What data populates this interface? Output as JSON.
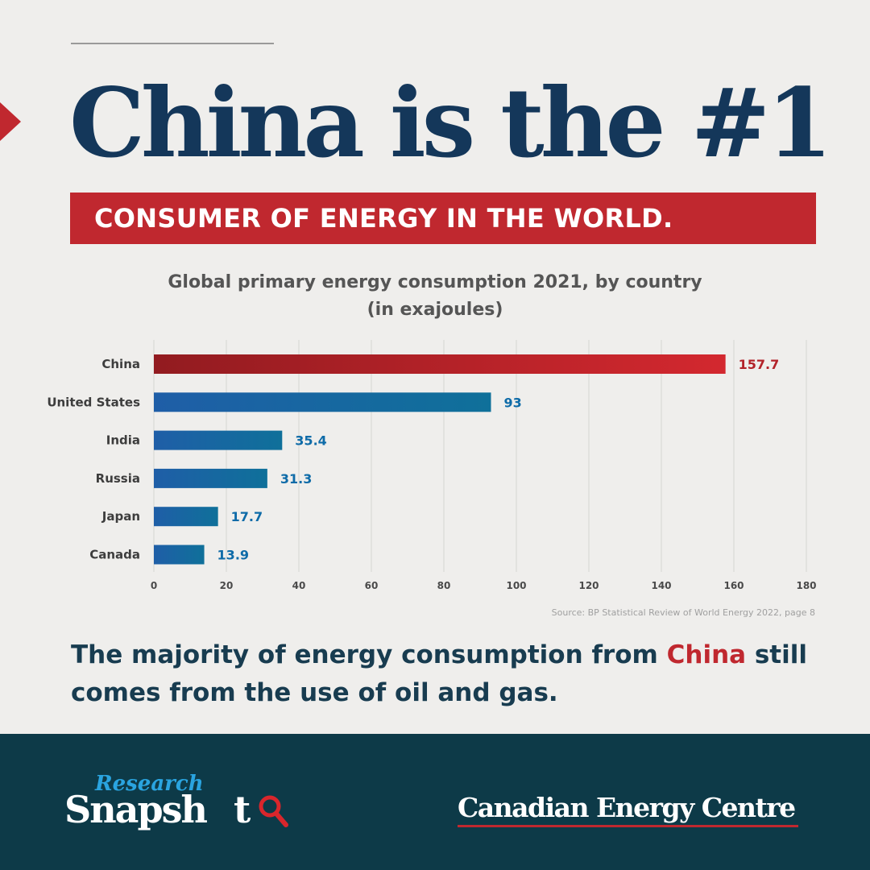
{
  "headline": "China is the #1",
  "banner": "CONSUMER OF ENERGY IN THE WORLD.",
  "chart_data": {
    "type": "bar",
    "orientation": "horizontal",
    "title": "Global primary energy consumption 2021, by country",
    "subtitle": "(in exajoules)",
    "categories": [
      "China",
      "United States",
      "India",
      "Russia",
      "Japan",
      "Canada"
    ],
    "values": [
      157.7,
      93,
      35.4,
      31.3,
      17.7,
      13.9
    ],
    "value_labels": [
      "157.7",
      "93",
      "35.4",
      "31.3",
      "17.7",
      "13.9"
    ],
    "xlim": [
      0,
      180
    ],
    "x_ticks": [
      0,
      20,
      40,
      60,
      80,
      100,
      120,
      140,
      160,
      180
    ],
    "grid": "vertical",
    "xlabel": "",
    "ylabel": "",
    "colors": {
      "highlight_start": "#921b20",
      "highlight_end": "#d3282f",
      "highlight_label": "#b3232a",
      "bar_start": "#1f5ea7",
      "bar_end": "#0f709a",
      "bar_label": "#0e6ba8"
    }
  },
  "source": "Source: BP Statistical Review of World Energy 2022, page 8",
  "body": {
    "before": "The majority of energy consumption from ",
    "highlight": "China",
    "after": " still comes from the use of oil and gas."
  },
  "footer": {
    "logo_top": "Research",
    "logo_main": "Snapsh",
    "logo_tail": "t",
    "org_name": "Canadian Energy Centre"
  },
  "colors": {
    "navy": "#14375a",
    "red": "#c0282f",
    "footer_bg": "#0d3a48",
    "research_blue": "#2aa4e0"
  }
}
